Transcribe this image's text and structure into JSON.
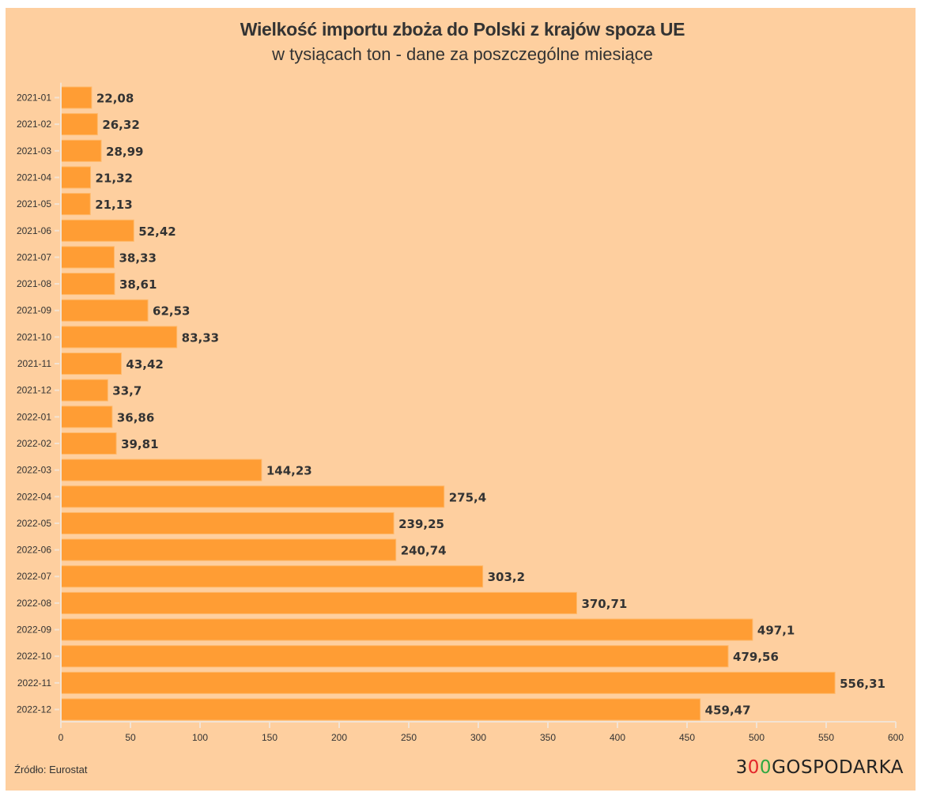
{
  "chart_data": {
    "type": "bar",
    "orientation": "horizontal",
    "title": "Wielkość importu zboża do Polski z krajów spoza UE",
    "subtitle": "w tysiącach ton - dane za poszczególne miesiące",
    "xlabel": "",
    "ylabel": "",
    "xlim": [
      0,
      600
    ],
    "x_ticks": [
      0,
      50,
      100,
      150,
      200,
      250,
      300,
      350,
      400,
      450,
      500,
      550,
      600
    ],
    "grid": false,
    "legend": "none",
    "categories": [
      "2021-01",
      "2021-02",
      "2021-03",
      "2021-04",
      "2021-05",
      "2021-06",
      "2021-07",
      "2021-08",
      "2021-09",
      "2021-10",
      "2021-11",
      "2021-12",
      "2022-01",
      "2022-02",
      "2022-03",
      "2022-04",
      "2022-05",
      "2022-06",
      "2022-07",
      "2022-08",
      "2022-09",
      "2022-10",
      "2022-11",
      "2022-12"
    ],
    "values": [
      22.08,
      26.32,
      28.99,
      21.32,
      21.13,
      52.42,
      38.33,
      38.61,
      62.53,
      83.33,
      43.42,
      33.7,
      36.86,
      39.81,
      144.23,
      275.4,
      239.25,
      240.74,
      303.2,
      370.71,
      497.1,
      479.56,
      556.31,
      459.47
    ],
    "value_labels": [
      "22,08",
      "26,32",
      "28,99",
      "21,32",
      "21,13",
      "52,42",
      "38,33",
      "38,61",
      "62,53",
      "83,33",
      "43,42",
      "33,7",
      "36,86",
      "39,81",
      "144,23",
      "275,4",
      "239,25",
      "240,74",
      "303,2",
      "370,71",
      "497,1",
      "479,56",
      "556,31",
      "459,47"
    ],
    "bar_color": "#ff9d34",
    "background_color": "#fecf9f"
  },
  "footer": {
    "source": "Źródło: Eurostat",
    "logo_parts": [
      "3",
      "0",
      "0",
      "GOSPODARKA"
    ]
  }
}
